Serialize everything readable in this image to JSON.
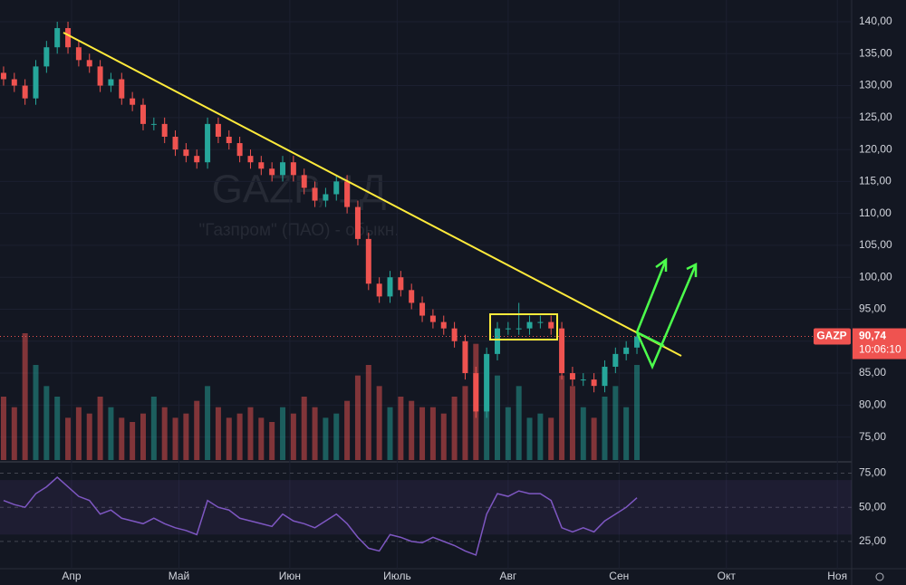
{
  "chart_data": {
    "type": "candlestick",
    "watermark_title": "GAZP, 1Д",
    "watermark_subtitle": "\"Газпром\" (ПАО) - обыкн.",
    "ticker": "GAZP",
    "last_label": "90,74",
    "countdown": "10:06:10",
    "x": [
      -19,
      -16,
      -13,
      -10,
      -7,
      -4,
      -1,
      2,
      5,
      8,
      11,
      14,
      17,
      20,
      23,
      26,
      29,
      32,
      35,
      38,
      41,
      44,
      47,
      50,
      53,
      56,
      59,
      62,
      65,
      68,
      71,
      74,
      77,
      80,
      83,
      86,
      89,
      92,
      95,
      98,
      101,
      104,
      107,
      110,
      113,
      116,
      119,
      122,
      125,
      128,
      131,
      134,
      137,
      140,
      143,
      146,
      149,
      152,
      155,
      158
    ],
    "open": [
      132,
      131,
      130,
      128,
      133,
      136,
      139,
      136,
      134,
      133,
      130,
      131,
      128,
      127,
      124,
      124,
      122,
      120,
      119,
      118,
      124,
      122,
      121,
      119,
      118,
      117,
      116,
      118,
      116,
      114,
      112,
      113,
      115,
      111,
      106,
      99,
      97,
      100,
      98,
      96,
      94,
      93,
      92,
      90,
      85,
      79,
      88,
      92,
      92,
      92,
      93,
      93,
      92,
      85,
      84,
      84,
      83,
      86,
      88,
      89
    ],
    "high": [
      133,
      132,
      131,
      134,
      137,
      140,
      140,
      137,
      135,
      134,
      132,
      132,
      129,
      128,
      125,
      125,
      123,
      121,
      120,
      125,
      125,
      123,
      122,
      120,
      119,
      118,
      119,
      119,
      117,
      115,
      114,
      116,
      116,
      112,
      107,
      100,
      101,
      101,
      99,
      97,
      95,
      94,
      93,
      91,
      86,
      89,
      93,
      93,
      96,
      94,
      94,
      94,
      93,
      86,
      85,
      85,
      87,
      89,
      90,
      91
    ],
    "low": [
      130,
      129,
      127,
      127,
      132,
      135,
      135,
      133,
      132,
      129,
      129,
      127,
      126,
      123,
      123,
      121,
      119,
      118,
      117,
      117,
      121,
      120,
      118,
      117,
      116,
      115,
      115,
      115,
      113,
      111,
      111,
      112,
      110,
      105,
      98,
      96,
      96,
      97,
      95,
      93,
      92,
      91,
      89,
      84,
      78,
      78,
      87,
      91,
      91,
      91,
      92,
      91,
      84,
      83,
      83,
      82,
      82,
      85,
      87,
      88
    ],
    "close": [
      131,
      130,
      128,
      133,
      136,
      139,
      136,
      134,
      133,
      130,
      131,
      128,
      127,
      124,
      124,
      122,
      120,
      119,
      118,
      124,
      122,
      121,
      119,
      118,
      117,
      116,
      118,
      116,
      114,
      112,
      113,
      115,
      111,
      106,
      99,
      97,
      100,
      98,
      96,
      94,
      93,
      92,
      90,
      85,
      79,
      88,
      92,
      92,
      92,
      93,
      93,
      92,
      85,
      84,
      84,
      83,
      86,
      88,
      89,
      90.74
    ],
    "volume": [
      30,
      25,
      60,
      45,
      35,
      30,
      20,
      25,
      22,
      30,
      25,
      20,
      18,
      22,
      30,
      25,
      20,
      22,
      28,
      35,
      25,
      20,
      22,
      25,
      20,
      18,
      25,
      22,
      30,
      25,
      20,
      22,
      28,
      40,
      45,
      35,
      25,
      30,
      28,
      25,
      25,
      22,
      30,
      35,
      55,
      50,
      40,
      25,
      35,
      20,
      22,
      20,
      40,
      35,
      25,
      20,
      30,
      35,
      25,
      45
    ],
    "up_color": "#26a69a",
    "down_color": "#ef5350",
    "xlim": [
      -20,
      218
    ],
    "xticks": [
      {
        "value": 0,
        "label": "Апр"
      },
      {
        "value": 30,
        "label": "Май"
      },
      {
        "value": 61,
        "label": "Июн"
      },
      {
        "value": 91,
        "label": "Июль"
      },
      {
        "value": 122,
        "label": "Авг"
      },
      {
        "value": 153,
        "label": "Сен"
      },
      {
        "value": 183,
        "label": "Окт"
      },
      {
        "value": 214,
        "label": "Ноя"
      }
    ],
    "ylim": [
      71.4,
      143.4
    ],
    "yticks": [
      {
        "value": 75,
        "label": "75,00"
      },
      {
        "value": 80,
        "label": "80,00"
      },
      {
        "value": 85,
        "label": "85,00"
      },
      {
        "value": 90,
        "label": "90,00"
      },
      {
        "value": 95,
        "label": "95,00"
      },
      {
        "value": 100,
        "label": "100,00"
      },
      {
        "value": 105,
        "label": "105,00"
      },
      {
        "value": 110,
        "label": "110,00"
      },
      {
        "value": 115,
        "label": "115,00"
      },
      {
        "value": 120,
        "label": "120,00"
      },
      {
        "value": 125,
        "label": "125,00"
      },
      {
        "value": 130,
        "label": "130,00"
      },
      {
        "value": 135,
        "label": "135,00"
      },
      {
        "value": 140,
        "label": "140,00"
      }
    ],
    "rsi": {
      "values": [
        55,
        52,
        50,
        60,
        65,
        72,
        65,
        58,
        55,
        45,
        48,
        42,
        40,
        38,
        42,
        38,
        35,
        33,
        30,
        55,
        50,
        48,
        42,
        40,
        38,
        36,
        45,
        40,
        38,
        35,
        40,
        45,
        38,
        28,
        20,
        18,
        30,
        28,
        25,
        24,
        28,
        25,
        22,
        18,
        15,
        45,
        60,
        58,
        62,
        60,
        60,
        55,
        35,
        32,
        35,
        32,
        40,
        45,
        50,
        57
      ],
      "color": "#7e57c2",
      "ylim": [
        5,
        82
      ],
      "yticks": [
        {
          "value": 25,
          "label": "25,00"
        },
        {
          "value": 50,
          "label": "50,00"
        },
        {
          "value": 75,
          "label": "75,00"
        }
      ]
    },
    "grid": true
  }
}
